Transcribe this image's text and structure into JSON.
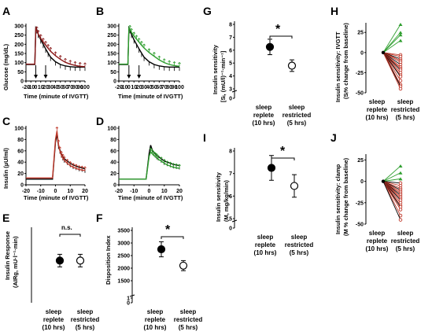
{
  "figure": {
    "panels": [
      "A",
      "B",
      "C",
      "D",
      "E",
      "F",
      "G",
      "H",
      "I",
      "J"
    ]
  },
  "colors": {
    "replete_timecourse": "#000000",
    "restricted_A": "#8b1a1a",
    "restricted_B": "#2e9e2e",
    "restricted_C": "#c0392b",
    "restricted_D": "#2e9e2e",
    "increase": "#2e9e2e",
    "decrease": "#c0392b"
  },
  "groups": {
    "replete": [
      "sleep",
      "replete",
      "(10 hrs)"
    ],
    "restricted": [
      "sleep",
      "restricted",
      "(5 hrs)"
    ]
  },
  "chart_data": [
    {
      "panel": "A",
      "type": "line",
      "xlabel": "Time (minute of IVGTT)",
      "ylabel": "Glucose (mg/dL)",
      "xlim": [
        -20,
        100
      ],
      "ylim": [
        0,
        300
      ],
      "xticks": [
        -20,
        -10,
        0,
        10,
        20,
        30,
        40,
        50,
        60,
        70,
        80,
        90,
        100
      ],
      "yticks": [
        0,
        50,
        100,
        150,
        200,
        250,
        300
      ],
      "arrows_at": [
        0,
        20
      ],
      "series": [
        {
          "x": [
            -20,
            -2,
            0,
            2,
            5,
            10,
            15,
            20,
            25,
            30,
            40,
            50,
            60,
            70,
            80,
            90,
            100
          ],
          "values": [
            90,
            90,
            290,
            280,
            255,
            225,
            200,
            175,
            152,
            130,
            105,
            90,
            82,
            78,
            76,
            76,
            76
          ]
        },
        {
          "x": [
            -20,
            -2,
            0,
            2,
            5,
            10,
            15,
            20,
            25,
            30,
            40,
            50,
            60,
            70,
            80,
            90,
            100
          ],
          "values": [
            92,
            92,
            285,
            275,
            255,
            232,
            212,
            195,
            178,
            162,
            138,
            118,
            102,
            92,
            85,
            80,
            78
          ]
        }
      ]
    },
    {
      "panel": "B",
      "type": "line",
      "xlabel": "Time (minute of IVGTT)",
      "ylabel": "",
      "xlim": [
        -20,
        100
      ],
      "ylim": [
        0,
        300
      ],
      "xticks": [
        -20,
        -10,
        0,
        10,
        20,
        30,
        40,
        50,
        60,
        70,
        80,
        90,
        100
      ],
      "yticks": [
        0,
        50,
        100,
        150,
        200,
        250,
        300
      ],
      "arrows_at": [
        0,
        20
      ],
      "series": [
        {
          "x": [
            -20,
            -2,
            0,
            2,
            5,
            10,
            15,
            20,
            25,
            30,
            40,
            50,
            60,
            70,
            80,
            90,
            100
          ],
          "values": [
            90,
            90,
            290,
            280,
            255,
            225,
            200,
            175,
            152,
            130,
            105,
            90,
            82,
            78,
            76,
            76,
            76
          ]
        },
        {
          "x": [
            -20,
            -2,
            0,
            2,
            5,
            10,
            15,
            20,
            25,
            30,
            40,
            50,
            60,
            70,
            80,
            90,
            100
          ],
          "values": [
            92,
            92,
            288,
            282,
            265,
            245,
            228,
            212,
            195,
            180,
            155,
            135,
            115,
            100,
            90,
            84,
            80
          ]
        }
      ]
    },
    {
      "panel": "C",
      "type": "line",
      "xlabel": "Time (minute of IVGTT)",
      "ylabel": "Insulin (µU/ml)",
      "xlim": [
        -20,
        20
      ],
      "ylim": [
        0,
        100
      ],
      "xticks": [
        -20,
        -10,
        0,
        10,
        20
      ],
      "yticks": [
        0,
        20,
        40,
        60,
        80,
        100
      ],
      "series": [
        {
          "x": [
            -20,
            -2,
            0,
            1,
            2,
            3,
            4,
            5,
            6,
            8,
            10,
            12,
            14,
            16,
            18,
            20
          ],
          "values": [
            10,
            10,
            75,
            90,
            70,
            62,
            55,
            50,
            46,
            42,
            38,
            35,
            33,
            31,
            30,
            28
          ]
        },
        {
          "x": [
            -20,
            -2,
            0,
            1,
            2,
            3,
            4,
            5,
            6,
            8,
            10,
            12,
            14,
            16,
            18,
            20
          ],
          "values": [
            12,
            12,
            80,
            95,
            72,
            60,
            52,
            47,
            43,
            38,
            34,
            31,
            29,
            27,
            26,
            25
          ]
        }
      ]
    },
    {
      "panel": "D",
      "type": "line",
      "xlabel": "Time (minute of IVGTT)",
      "ylabel": "",
      "xlim": [
        -20,
        20
      ],
      "ylim": [
        0,
        100
      ],
      "xticks": [
        -20,
        -10,
        0,
        10,
        20
      ],
      "yticks": [
        0,
        20,
        40,
        60,
        80,
        100
      ],
      "series": [
        {
          "x": [
            -20,
            -2,
            0,
            1,
            2,
            3,
            4,
            5,
            6,
            8,
            10,
            12,
            14,
            16,
            18,
            20
          ],
          "values": [
            10,
            10,
            55,
            70,
            62,
            58,
            55,
            52,
            50,
            46,
            42,
            40,
            38,
            36,
            35,
            34
          ]
        },
        {
          "x": [
            -20,
            -2,
            0,
            1,
            2,
            3,
            4,
            5,
            6,
            8,
            10,
            12,
            14,
            16,
            18,
            20
          ],
          "values": [
            10,
            10,
            50,
            58,
            55,
            52,
            50,
            48,
            45,
            42,
            38,
            35,
            33,
            31,
            30,
            29
          ]
        }
      ]
    },
    {
      "panel": "E",
      "type": "scatter",
      "ylabel": "Insulin Response (AIRg, mU·l⁻¹·min)",
      "yticks": [],
      "annotation": "n.s.",
      "points": [
        {
          "group": "replete",
          "value": 0.52,
          "err": 0.1,
          "filled": true
        },
        {
          "group": "restricted",
          "value": 0.52,
          "err": 0.1,
          "filled": false
        }
      ]
    },
    {
      "panel": "F",
      "type": "scatter",
      "ylabel": "Disposition Index",
      "ylim": [
        0,
        3500
      ],
      "yticks": [
        0,
        1,
        1500,
        2000,
        2500,
        3000,
        3500
      ],
      "annotation": "*",
      "points": [
        {
          "group": "replete",
          "value": 2750,
          "err": 300,
          "filled": true
        },
        {
          "group": "restricted",
          "value": 2100,
          "err": 200,
          "filled": false
        }
      ]
    },
    {
      "panel": "G",
      "type": "scatter",
      "ylabel": "Insulin sensitivity [Sᵢ, (mU/l)⁻¹·min⁻¹]",
      "ylim": [
        0,
        8
      ],
      "yticks": [
        0,
        3,
        4,
        5,
        6,
        7,
        8
      ],
      "annotation": "*",
      "points": [
        {
          "group": "replete",
          "value": 6.25,
          "err": 0.6,
          "filled": true
        },
        {
          "group": "restricted",
          "value": 4.8,
          "err": 0.45,
          "filled": false
        }
      ]
    },
    {
      "panel": "H",
      "type": "scatter",
      "ylabel": "Insulin sensitivity: IVGTT (Sᵢ% change from baseline)",
      "ylim": [
        -50,
        35
      ],
      "yticks": [
        -50,
        -25,
        0,
        25
      ],
      "changes": [
        35,
        25,
        22,
        15,
        -3,
        -5,
        -8,
        -10,
        -12,
        -15,
        -18,
        -20,
        -22,
        -25,
        -28,
        -30,
        -35,
        -40,
        -42,
        -45
      ]
    },
    {
      "panel": "I",
      "type": "scatter",
      "ylabel": "Insulin sensitivity (M, mg/kg/min)",
      "ylim": [
        0,
        8
      ],
      "yticks": [
        0,
        5,
        6,
        7,
        8
      ],
      "annotation": "*",
      "points": [
        {
          "group": "replete",
          "value": 7.25,
          "err": 0.55,
          "filled": true
        },
        {
          "group": "restricted",
          "value": 6.45,
          "err": 0.5,
          "filled": false
        }
      ]
    },
    {
      "panel": "J",
      "type": "scatter",
      "ylabel": "Insulin sensitivity: clamp (M % change from baseline)",
      "ylim": [
        -50,
        30
      ],
      "yticks": [
        -50,
        -25,
        0,
        25
      ],
      "changes": [
        18,
        10,
        3,
        -2,
        -5,
        -8,
        -10,
        -12,
        -14,
        -16,
        -18,
        -20,
        -22,
        -25,
        -28,
        -30,
        -33,
        -40,
        -45
      ]
    }
  ]
}
